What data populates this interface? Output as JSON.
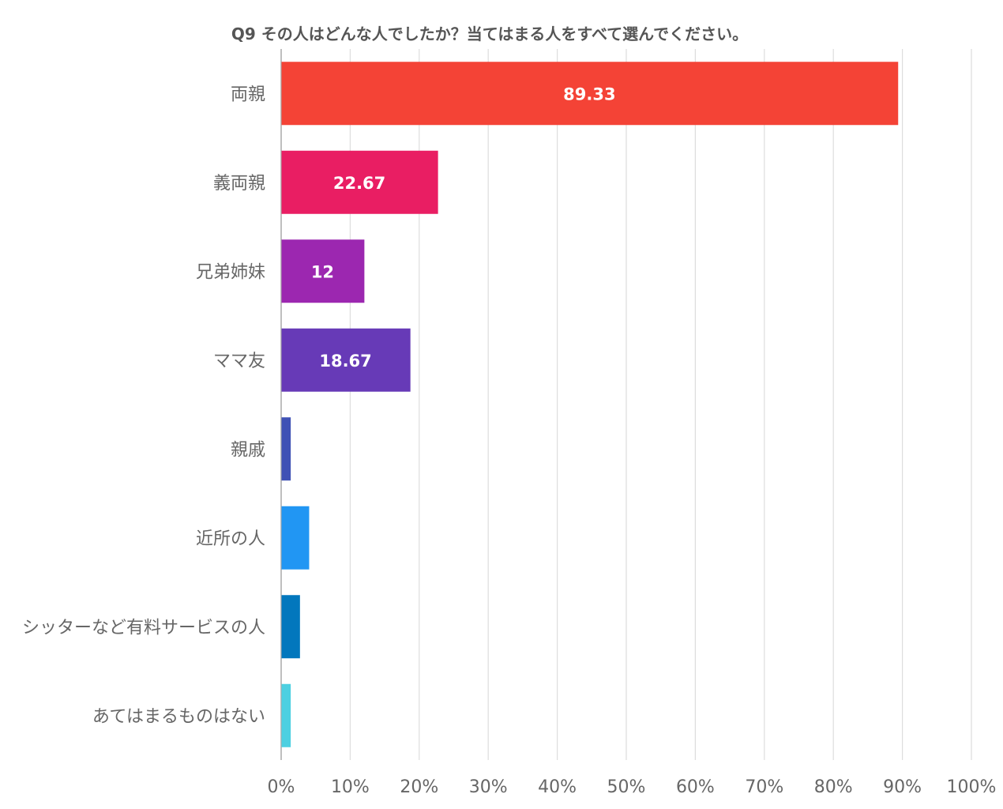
{
  "chart_data": {
    "type": "bar",
    "orientation": "horizontal",
    "title": "Q9 その人はどんな人でしたか？当てはまる人をすべて選んでください。",
    "xlabel": "",
    "ylabel": "",
    "xlim": [
      0,
      100
    ],
    "x_ticks": [
      "0%",
      "10%",
      "20%",
      "30%",
      "40%",
      "50%",
      "60%",
      "70%",
      "80%",
      "90%",
      "100%"
    ],
    "grid": true,
    "legend": "none",
    "categories": [
      "両親",
      "義両親",
      "兄弟姉妹",
      "ママ友",
      "親戚",
      "近所の人",
      "シッターなど有料サービスの人",
      "あてはまるものはない"
    ],
    "values": [
      89.33,
      22.67,
      12,
      18.67,
      1.33,
      4,
      2.67,
      1.33
    ],
    "data_labels": [
      "89.33",
      "22.67",
      "12",
      "18.67",
      "",
      "",
      "",
      ""
    ],
    "colors": [
      "#F44336",
      "#E91E63",
      "#9C27B0",
      "#673AB7",
      "#3F51B5",
      "#2196F3",
      "#0277BD",
      "#4DD0E1"
    ]
  }
}
